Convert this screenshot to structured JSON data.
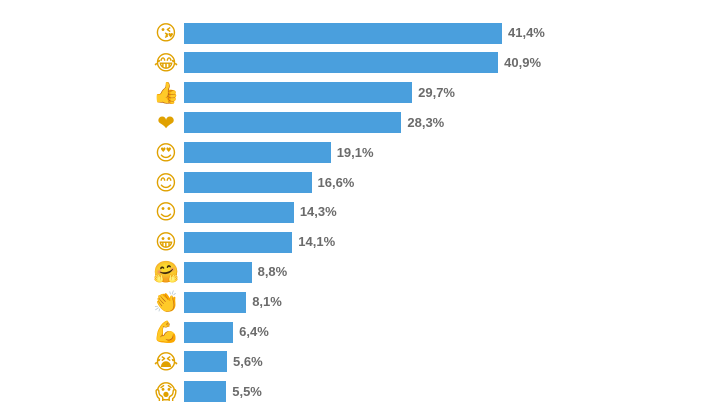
{
  "chart_data": {
    "type": "bar",
    "orientation": "horizontal",
    "title": "",
    "xlabel": "",
    "ylabel": "",
    "bar_color": "#4a9fdd",
    "value_label_color": "#6b6b6b",
    "categories": [
      "kissing-face-with-heart-emoji",
      "tears-of-joy-emoji",
      "thumbs-up-emoji",
      "red-heart-emoji",
      "heart-eyes-emoji",
      "smiling-eyes-emoji",
      "relieved-smile-emoji",
      "grinning-face-emoji",
      "hugging-face-emoji",
      "clapping-hands-emoji",
      "flexed-biceps-emoji",
      "crying-face-emoji",
      "screaming-face-emoji"
    ],
    "glyphs": [
      "😘",
      "😂",
      "👍",
      "❤",
      "😍",
      "😊",
      "☺",
      "😀",
      "🤗",
      "👏",
      "💪",
      "😭",
      "😱"
    ],
    "values": [
      41.4,
      40.9,
      29.7,
      28.3,
      19.1,
      16.6,
      14.3,
      14.1,
      8.8,
      8.1,
      6.4,
      5.6,
      5.5
    ],
    "value_labels": [
      "41,4%",
      "40,9%",
      "29,7%",
      "28,3%",
      "19,1%",
      "16,6%",
      "14,3%",
      "14,1%",
      "8,8%",
      "8,1%",
      "6,4%",
      "5,6%",
      "5,5%"
    ],
    "xlim": [
      0,
      41.4
    ]
  }
}
